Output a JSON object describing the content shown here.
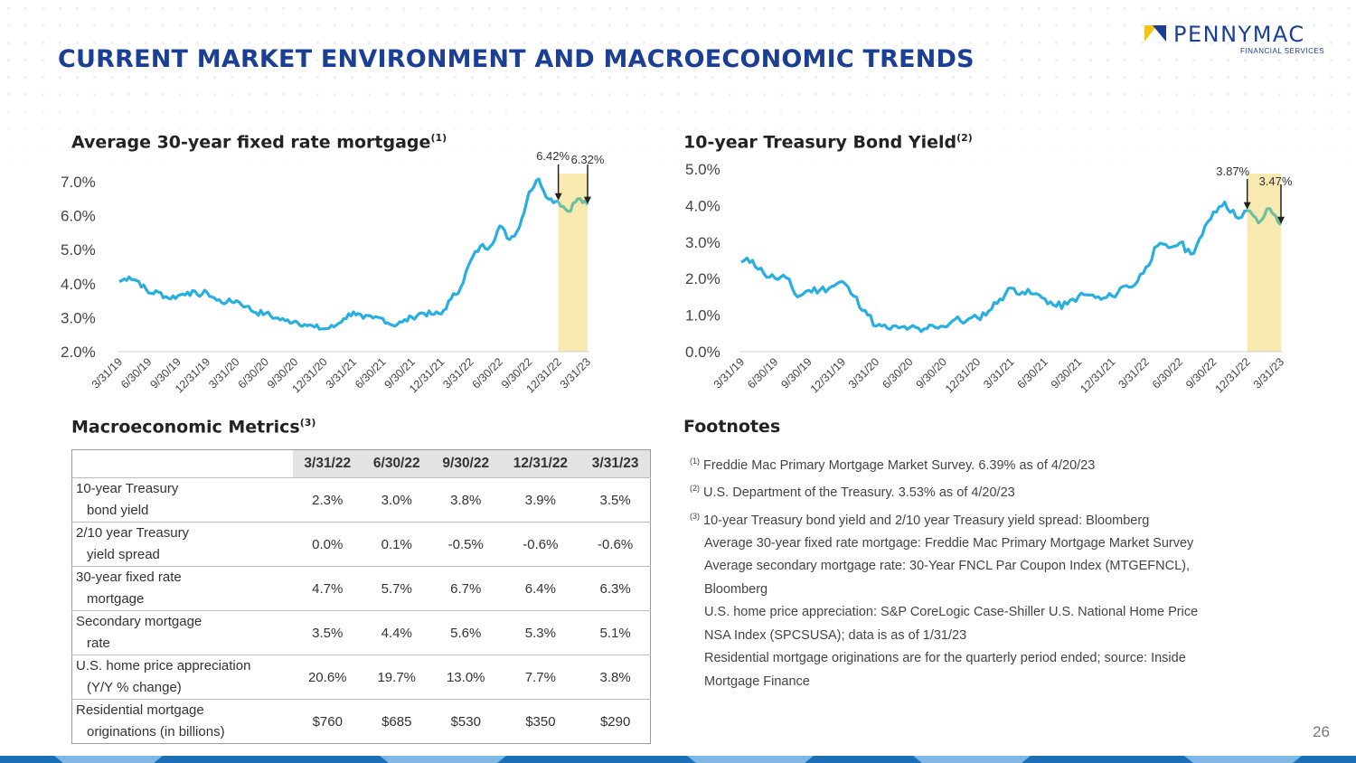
{
  "header": {
    "title": "CURRENT MARKET ENVIRONMENT AND MACROECONOMIC TRENDS",
    "logo_text": "PENNYMAC",
    "logo_sub": "FINANCIAL SERVICES",
    "brand_color": "#1b3f94",
    "accent_color": "#f5c41a"
  },
  "left_chart": {
    "title": "Average 30-year fixed rate mortgage",
    "footnote_ref": "(1)",
    "y_ticks": [
      "7.0%",
      "6.0%",
      "5.0%",
      "4.0%",
      "3.0%",
      "2.0%"
    ],
    "x_ticks": [
      "3/31/19",
      "6/30/19",
      "9/30/19",
      "12/31/19",
      "3/31/20",
      "6/30/20",
      "9/30/20",
      "12/31/20",
      "3/31/21",
      "6/30/21",
      "9/30/21",
      "12/31/21",
      "3/31/22",
      "6/30/22",
      "9/30/22",
      "12/31/22",
      "3/31/23"
    ],
    "annotations": [
      "6.42%",
      "6.32%"
    ]
  },
  "right_chart": {
    "title": "10-year Treasury Bond Yield",
    "footnote_ref": "(2)",
    "y_ticks": [
      "5.0%",
      "4.0%",
      "3.0%",
      "2.0%",
      "1.0%",
      "0.0%"
    ],
    "x_ticks": [
      "3/31/19",
      "6/30/19",
      "9/30/19",
      "12/31/19",
      "3/31/20",
      "6/30/20",
      "9/30/20",
      "12/31/20",
      "3/31/21",
      "6/30/21",
      "9/30/21",
      "12/31/21",
      "3/31/22",
      "6/30/22",
      "9/30/22",
      "12/31/22",
      "3/31/23"
    ],
    "annotations": [
      "3.87%",
      "3.47%"
    ]
  },
  "chart_data": [
    {
      "type": "line",
      "title": "Average 30-year fixed rate mortgage",
      "ylim": [
        2.0,
        7.0
      ],
      "y_unit": "%",
      "x": [
        "3/31/19",
        "4/30/19",
        "5/31/19",
        "6/30/19",
        "7/31/19",
        "8/31/19",
        "9/30/19",
        "10/31/19",
        "11/30/19",
        "12/31/19",
        "1/31/20",
        "2/29/20",
        "3/31/20",
        "4/30/20",
        "5/31/20",
        "6/30/20",
        "7/31/20",
        "8/31/20",
        "9/30/20",
        "10/31/20",
        "11/30/20",
        "12/31/20",
        "1/31/21",
        "2/28/21",
        "3/31/21",
        "4/30/21",
        "5/31/21",
        "6/30/21",
        "7/31/21",
        "8/31/21",
        "9/30/21",
        "10/31/21",
        "11/30/21",
        "12/31/21",
        "1/31/22",
        "2/28/22",
        "3/31/22",
        "4/30/22",
        "5/31/22",
        "6/30/22",
        "7/31/22",
        "8/31/22",
        "9/30/22",
        "10/31/22",
        "11/30/22",
        "12/31/22",
        "1/31/23",
        "2/28/23",
        "3/31/23"
      ],
      "values": [
        4.06,
        4.2,
        4.06,
        3.73,
        3.75,
        3.58,
        3.64,
        3.75,
        3.68,
        3.74,
        3.51,
        3.45,
        3.5,
        3.33,
        3.15,
        3.13,
        2.99,
        2.91,
        2.9,
        2.8,
        2.72,
        2.67,
        2.73,
        2.97,
        3.17,
        2.98,
        2.99,
        2.98,
        2.78,
        2.87,
        3.01,
        3.14,
        3.1,
        3.11,
        3.55,
        3.89,
        4.67,
        5.1,
        5.09,
        5.7,
        5.3,
        5.66,
        6.7,
        7.08,
        6.49,
        6.42,
        6.13,
        6.5,
        6.32
      ],
      "highlight": {
        "from": "12/31/22",
        "to": "3/31/23",
        "start_value": 6.42,
        "end_value": 6.32
      }
    },
    {
      "type": "line",
      "title": "10-year Treasury Bond Yield",
      "ylim": [
        0.0,
        5.0
      ],
      "y_unit": "%",
      "x": [
        "3/31/19",
        "4/30/19",
        "5/31/19",
        "6/30/19",
        "7/31/19",
        "8/31/19",
        "9/30/19",
        "10/31/19",
        "11/30/19",
        "12/31/19",
        "1/31/20",
        "2/29/20",
        "3/31/20",
        "4/30/20",
        "5/31/20",
        "6/30/20",
        "7/31/20",
        "8/31/20",
        "9/30/20",
        "10/31/20",
        "11/30/20",
        "12/31/20",
        "1/31/21",
        "2/28/21",
        "3/31/21",
        "4/30/21",
        "5/31/21",
        "6/30/21",
        "7/31/21",
        "8/31/21",
        "9/30/21",
        "10/31/21",
        "11/30/21",
        "12/31/21",
        "1/31/22",
        "2/28/22",
        "3/31/22",
        "4/30/22",
        "5/31/22",
        "6/30/22",
        "7/31/22",
        "8/31/22",
        "9/30/22",
        "10/31/22",
        "11/30/22",
        "12/31/22",
        "1/31/23",
        "2/28/23",
        "3/31/23"
      ],
      "values": [
        2.45,
        2.5,
        2.14,
        2.01,
        2.02,
        1.5,
        1.68,
        1.69,
        1.78,
        1.92,
        1.52,
        1.13,
        0.7,
        0.64,
        0.65,
        0.66,
        0.55,
        0.72,
        0.69,
        0.88,
        0.84,
        0.93,
        1.11,
        1.44,
        1.74,
        1.63,
        1.58,
        1.45,
        1.24,
        1.3,
        1.52,
        1.55,
        1.43,
        1.52,
        1.79,
        1.83,
        2.32,
        2.89,
        2.85,
        2.98,
        2.67,
        3.19,
        3.83,
        4.1,
        3.68,
        3.87,
        3.52,
        3.92,
        3.47
      ],
      "highlight": {
        "from": "12/31/22",
        "to": "3/31/23",
        "start_value": 3.87,
        "end_value": 3.47
      }
    }
  ],
  "macro": {
    "title": "Macroeconomic Metrics",
    "footnote_ref": "(3)",
    "columns": [
      "3/31/22",
      "6/30/22",
      "9/30/22",
      "12/31/22",
      "3/31/23"
    ],
    "rows": [
      {
        "label_1": "10-year Treasury",
        "label_2": "bond yield",
        "values": [
          "2.3%",
          "3.0%",
          "3.8%",
          "3.9%",
          "3.5%"
        ]
      },
      {
        "label_1": "2/10 year Treasury",
        "label_2": "yield spread",
        "values": [
          "0.0%",
          "0.1%",
          "-0.5%",
          "-0.6%",
          "-0.6%"
        ]
      },
      {
        "label_1": "30-year fixed rate",
        "label_2": "mortgage",
        "values": [
          "4.7%",
          "5.7%",
          "6.7%",
          "6.4%",
          "6.3%"
        ]
      },
      {
        "label_1": "Secondary mortgage",
        "label_2": "rate",
        "values": [
          "3.5%",
          "4.4%",
          "5.6%",
          "5.3%",
          "5.1%"
        ]
      },
      {
        "label_1": "U.S. home price appreciation",
        "label_2": "(Y/Y % change)",
        "values": [
          "20.6%",
          "19.7%",
          "13.0%",
          "7.7%",
          "3.8%"
        ]
      },
      {
        "label_1": "Residential mortgage",
        "label_2": "originations (in billions)",
        "values": [
          "$760",
          "$685",
          "$530",
          "$350",
          "$290"
        ]
      }
    ]
  },
  "footnotes": {
    "title": "Footnotes",
    "items": [
      {
        "ref": "(1)",
        "text": "Freddie Mac Primary Mortgage Market Survey. 6.39% as of 4/20/23"
      },
      {
        "ref": "(2)",
        "text": "U.S. Department of the Treasury. 3.53% as of 4/20/23"
      },
      {
        "ref": "(3)",
        "text": "10-year Treasury bond yield and 2/10 year Treasury yield spread: Bloomberg"
      }
    ],
    "continuation": [
      "Average 30-year fixed rate mortgage: Freddie Mac Primary Mortgage Market Survey",
      "Average secondary mortgage rate: 30-Year FNCL Par Coupon Index (MTGEFNCL),",
      "Bloomberg",
      "U.S. home price appreciation: S&P CoreLogic Case-Shiller U.S. National Home Price",
      "NSA Index (SPCSUSA); data is as of 1/31/23",
      "Residential mortgage originations are for the quarterly period ended; source: Inside",
      "Mortgage Finance"
    ]
  },
  "page_number": "26",
  "colors": {
    "line": "#29aee0",
    "highlight_line": "#6cbfa0",
    "highlight_band": "#f8e9b0",
    "axis_text": "#444444"
  }
}
